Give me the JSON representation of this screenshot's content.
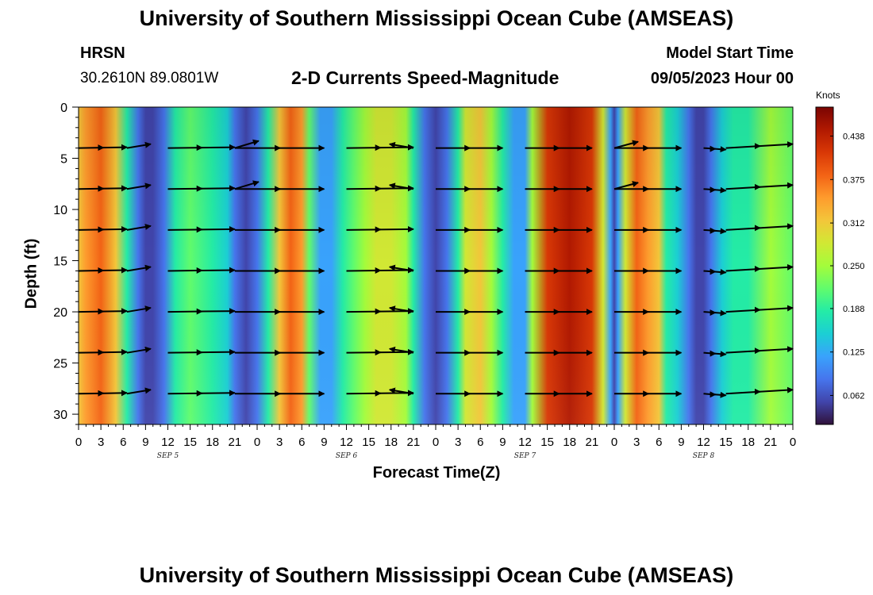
{
  "page_title": "University of Southern Mississippi Ocean Cube (AMSEAS)",
  "station": {
    "name": "HRSN",
    "coords": "30.2610N  89.0801W"
  },
  "model": {
    "label": "Model Start Time",
    "start": "09/05/2023 Hour 00"
  },
  "colors": {
    "arrow": "#000000",
    "colormap": [
      "#30123b",
      "#4145ab",
      "#4675ed",
      "#39a2fc",
      "#1bcfd4",
      "#24eca6",
      "#61fc6c",
      "#a4fc3b",
      "#d1e834",
      "#f3c63a",
      "#fe9b2d",
      "#f36315",
      "#d93806",
      "#b11901",
      "#7a0402"
    ]
  },
  "chart_data": {
    "type": "heatmap",
    "title": "2-D Currents Speed-Magnitude",
    "xlabel": "Forecast Time(Z)",
    "ylabel": "Depth (ft)",
    "x_ticks": [
      "0",
      "3",
      "6",
      "9",
      "12",
      "15",
      "18",
      "21",
      "0",
      "3",
      "6",
      "9",
      "12",
      "15",
      "18",
      "21",
      "0",
      "3",
      "6",
      "9",
      "12",
      "15",
      "18",
      "21",
      "0",
      "3",
      "6",
      "9",
      "12",
      "15",
      "18",
      "21",
      "0"
    ],
    "x_range_hours": [
      0,
      96
    ],
    "date_labels": [
      {
        "label": "SEP 5",
        "hour": 12
      },
      {
        "label": "SEP 6",
        "hour": 36
      },
      {
        "label": "SEP 7",
        "hour": 60
      },
      {
        "label": "SEP 8",
        "hour": 84
      }
    ],
    "y_ticks": [
      "0",
      "5",
      "10",
      "15",
      "20",
      "25",
      "30"
    ],
    "y_range_ft": [
      0,
      31
    ],
    "colorbar": {
      "label": "Knots",
      "ticks": [
        "0.438",
        "0.375",
        "0.312",
        "0.250",
        "0.188",
        "0.125",
        "0.062"
      ],
      "range": [
        0.02,
        0.48
      ]
    },
    "speed_profile": {
      "hours": [
        0,
        1,
        3,
        5,
        6.5,
        8,
        9,
        10,
        11.5,
        13,
        15,
        18,
        20,
        21,
        22.5,
        24,
        25.5,
        27,
        28.5,
        30,
        31,
        32.5,
        34,
        35.5,
        37,
        38.5,
        40,
        42,
        44,
        45,
        46.5,
        48,
        49.5,
        51,
        52,
        54,
        55.5,
        57,
        58.5,
        60,
        61,
        63,
        66,
        69,
        70.5,
        71.5,
        72,
        72.5,
        73.5,
        75,
        76.5,
        78,
        79,
        80.5,
        82,
        83,
        84,
        85,
        86.5,
        88,
        90,
        93,
        96
      ],
      "values": [
        0.3,
        0.36,
        0.38,
        0.33,
        0.2,
        0.1,
        0.06,
        0.05,
        0.1,
        0.17,
        0.21,
        0.2,
        0.14,
        0.08,
        0.05,
        0.09,
        0.2,
        0.33,
        0.38,
        0.34,
        0.22,
        0.12,
        0.11,
        0.17,
        0.21,
        0.25,
        0.29,
        0.28,
        0.24,
        0.18,
        0.1,
        0.04,
        0.1,
        0.2,
        0.27,
        0.31,
        0.26,
        0.18,
        0.12,
        0.13,
        0.25,
        0.4,
        0.46,
        0.4,
        0.27,
        0.12,
        0.05,
        0.12,
        0.28,
        0.38,
        0.36,
        0.3,
        0.2,
        0.15,
        0.1,
        0.06,
        0.04,
        0.07,
        0.14,
        0.18,
        0.2,
        0.26,
        0.22
      ]
    },
    "vector_depths_ft": [
      4,
      8,
      12,
      16,
      20,
      24,
      28
    ],
    "vector_segments": [
      {
        "start": 0,
        "end": 6.5,
        "dy": -1
      },
      {
        "start": 12,
        "end": 21,
        "dy": -1
      },
      {
        "start": 21,
        "end": 33,
        "dy": 0
      },
      {
        "start": 36,
        "end": 45,
        "dy": -1
      },
      {
        "start": 48,
        "end": 57,
        "dy": 0
      },
      {
        "start": 60,
        "end": 69,
        "dy": 0
      },
      {
        "start": 72,
        "end": 81,
        "dy": 0
      },
      {
        "start": 84,
        "end": 87,
        "dy": 2
      },
      {
        "start": 87,
        "end": 96,
        "dy": -5
      }
    ],
    "transition_arrows": [
      {
        "hour": 6.5,
        "depths_ft": [
          4,
          8,
          12,
          16,
          20,
          24,
          28
        ],
        "dx": 3,
        "dy": -5
      },
      {
        "hour": 21,
        "depths_ft": [
          4,
          8
        ],
        "dx": 3,
        "dy": -9
      },
      {
        "hour": 45,
        "depths_ft": [
          4,
          8,
          16,
          20,
          24,
          28
        ],
        "dx": -3,
        "dy": -5
      },
      {
        "hour": 72,
        "depths_ft": [
          4,
          8
        ],
        "dx": 3,
        "dy": -8
      }
    ]
  },
  "footer_title": "University of Southern Mississippi Ocean Cube (AMSEAS)"
}
